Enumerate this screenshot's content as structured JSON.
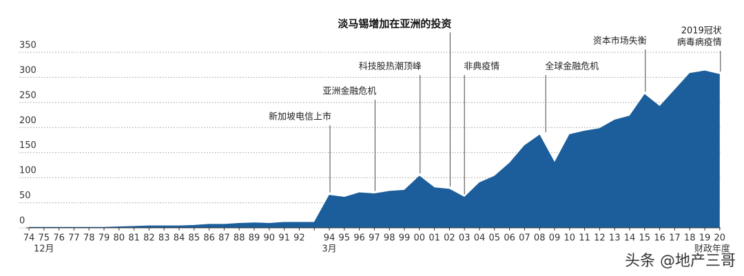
{
  "chart_data": {
    "type": "area",
    "color": "#1b5e9b",
    "grid": true,
    "categories": [
      "74",
      "75",
      "76",
      "77",
      "78",
      "79",
      "80",
      "81",
      "82",
      "83",
      "84",
      "85",
      "86",
      "87",
      "88",
      "89",
      "90",
      "91",
      "92",
      null,
      "94",
      "95",
      "96",
      "97",
      "98",
      "99",
      "00",
      "01",
      "02",
      "03",
      "04",
      "05",
      "06",
      "07",
      "08",
      "09",
      "10",
      "11",
      "12",
      "13",
      "14",
      "15",
      "16",
      "17",
      "18",
      "19",
      "20"
    ],
    "values": [
      1,
      1,
      1,
      1,
      1,
      1,
      2,
      3,
      4,
      4,
      4,
      5,
      7,
      7,
      9,
      10,
      9,
      11,
      11,
      11,
      65,
      61,
      70,
      68,
      73,
      75,
      103,
      80,
      77,
      61,
      90,
      103,
      129,
      164,
      185,
      130,
      186,
      193,
      198,
      215,
      223,
      266,
      242,
      275,
      308,
      313,
      306
    ],
    "ylim": [
      0,
      350
    ],
    "yticks": [
      0,
      50,
      100,
      150,
      200,
      250,
      300,
      350
    ],
    "x_sublabels": [
      {
        "category": "75",
        "text": "12月"
      },
      {
        "category": "94",
        "text": "3月"
      },
      {
        "category": "19",
        "text": "财政年度"
      }
    ],
    "annotations": [
      {
        "category": "94",
        "anchor": "end",
        "lines": [
          "新加坡电信上市"
        ]
      },
      {
        "category": "97",
        "anchor": "end",
        "lines": [
          "亚洲金融危机"
        ]
      },
      {
        "category": "00",
        "anchor": "end",
        "lines": [
          "科技股热潮顶峰"
        ]
      },
      {
        "category": "02",
        "anchor": "end",
        "bold": true,
        "lines": [
          "淡马锡增加在亚洲的投资"
        ]
      },
      {
        "category": "03",
        "anchor": "start",
        "lines": [
          "非典疫情"
        ]
      },
      {
        "category": "08",
        "anchor": "start",
        "lines": [
          "全球金融危机"
        ]
      },
      {
        "category": "15",
        "anchor": "end",
        "lines": [
          "资本市场失衡"
        ]
      },
      {
        "category": "20",
        "anchor": "end",
        "lines": [
          "2019冠状",
          "病毒病疫情"
        ]
      }
    ]
  },
  "watermark": "头条 @地产三哥"
}
